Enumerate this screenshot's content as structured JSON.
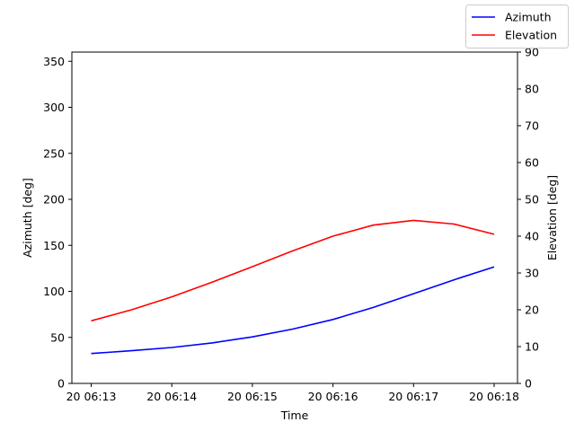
{
  "chart_data": {
    "type": "line",
    "title": "",
    "xlabel": "Time",
    "ylabel_left": "Azimuth [deg]",
    "ylabel_right": "Elevation [deg]",
    "x_tick_labels": [
      "20 06:13",
      "20 06:14",
      "20 06:15",
      "20 06:16",
      "20 06:17",
      "20 06:18"
    ],
    "x_minutes": [
      0,
      0.5,
      1,
      1.5,
      2,
      2.5,
      3,
      3.5,
      4,
      4.5,
      5
    ],
    "x_time_labels": [
      "06:13:00",
      "06:13:30",
      "06:14:00",
      "06:14:30",
      "06:15:00",
      "06:15:30",
      "06:16:00",
      "06:16:30",
      "06:17:00",
      "06:17:30",
      "06:18:00"
    ],
    "xlim_minutes": [
      -0.24,
      5.29
    ],
    "left_ylim": [
      0,
      360
    ],
    "left_yticks": [
      0,
      50,
      100,
      150,
      200,
      250,
      300,
      350
    ],
    "right_ylim": [
      0,
      90
    ],
    "right_yticks": [
      0,
      10,
      20,
      30,
      40,
      50,
      60,
      70,
      80,
      90
    ],
    "grid": false,
    "legend_position": "top-right",
    "series": [
      {
        "name": "Azimuth",
        "axis": "left",
        "color": "#0000ff",
        "values": [
          32.5,
          35.5,
          39.0,
          44.0,
          50.5,
          59.0,
          69.5,
          82.5,
          97.5,
          112.5,
          126.5
        ]
      },
      {
        "name": "Elevation",
        "axis": "right",
        "color": "#ff0000",
        "values": [
          17.0,
          20.0,
          23.5,
          27.5,
          31.7,
          36.0,
          40.0,
          43.0,
          44.3,
          43.3,
          40.5
        ]
      }
    ]
  }
}
